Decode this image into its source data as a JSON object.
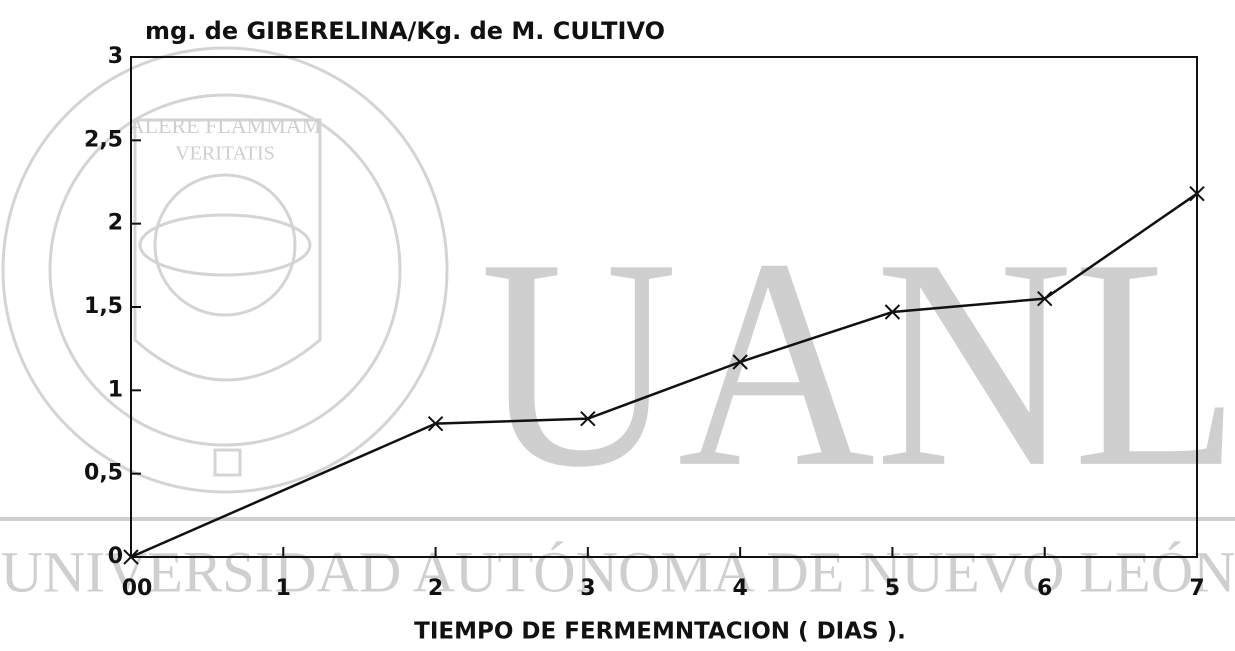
{
  "chart_data": {
    "type": "line",
    "title": "mg. de GIBERELINA/Kg. de M. CULTIVO",
    "x_label": "TIEMPO DE FERMEMNTACION ( DIAS ).",
    "x": [
      0,
      2,
      3,
      4,
      5,
      6,
      7
    ],
    "series": [
      {
        "name": "Giberelina",
        "color": "#111111",
        "values": [
          0,
          0.8,
          0.83,
          1.17,
          1.47,
          1.55,
          2.18
        ]
      }
    ],
    "xlim": [
      0,
      7
    ],
    "xticks": [
      {
        "value": 0,
        "label": "00"
      },
      1,
      2,
      3,
      4,
      5,
      6,
      7
    ],
    "ylim": [
      0,
      3
    ],
    "yticks": [
      0,
      {
        "value": 0.5,
        "label": "0,5"
      },
      1,
      {
        "value": 1.5,
        "label": "1,5"
      },
      2,
      {
        "value": 2.5,
        "label": "2,5"
      },
      3
    ],
    "grid": false,
    "watermark": {
      "text": "UANL",
      "caption": "UNIVERSIDAD AUTÓNOMA DE NUEVO LEÓN",
      "motto": [
        "ALERE FLAMMAM",
        "VERITATIS"
      ]
    }
  }
}
